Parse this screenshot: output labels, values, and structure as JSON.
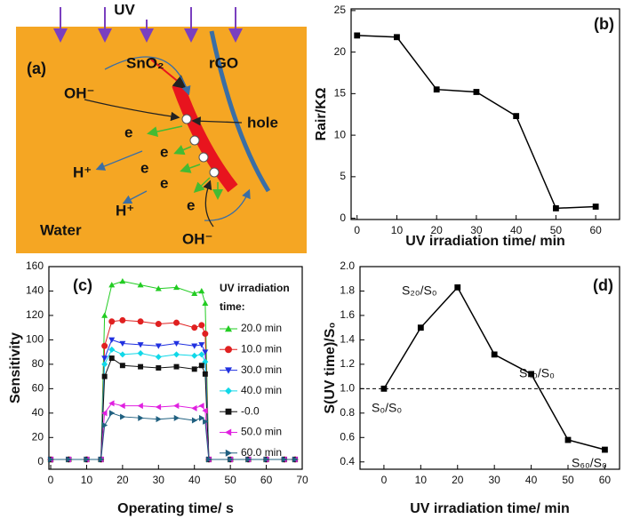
{
  "diagram": {
    "panel_label": "(a)",
    "source": "UV",
    "labels": {
      "sno2": "SnO₂",
      "rgo": "rGO",
      "oh_top": "OH⁻",
      "hole": "hole",
      "electron": "e",
      "h_plus": "H⁺",
      "water": "Water",
      "oh_bottom": "OH⁻"
    }
  },
  "chart_data": [
    {
      "type": "line",
      "panel_label": "(b)",
      "x_label": "UV irradiation time/ min",
      "y_label": "Rair/KΩ",
      "x": [
        0,
        10,
        20,
        30,
        40,
        50,
        60
      ],
      "series": [
        {
          "name": "Rair",
          "color": "#000000",
          "marker": "square",
          "values": [
            22,
            21.8,
            15.5,
            15.2,
            12.3,
            1.2,
            1.4
          ]
        }
      ],
      "xlim": [
        -1.5,
        66
      ],
      "ylim": [
        -0.15,
        25.2
      ],
      "xticks": [
        0,
        10,
        20,
        30,
        40,
        50,
        60
      ],
      "yticks": [
        0,
        5,
        10,
        15,
        20,
        25
      ]
    },
    {
      "type": "line",
      "panel_label": "(c)",
      "x_label": "Operating time/ s",
      "y_label": "Sensitivity",
      "legend_title": [
        "UV irradiation",
        "time:"
      ],
      "x": [
        0,
        5,
        10,
        14,
        15,
        17,
        20,
        25,
        30,
        35,
        40,
        42,
        43,
        44,
        50,
        55,
        60,
        65,
        68
      ],
      "series": [
        {
          "name": "20.0 min",
          "color": "#22cc22",
          "marker": "triangle-up",
          "values": [
            2,
            2,
            2,
            2,
            120,
            145,
            148,
            145,
            142,
            143,
            138,
            140,
            130,
            2,
            2,
            2,
            2,
            2,
            2
          ]
        },
        {
          "name": "10.0 min",
          "color": "#e02020",
          "marker": "circle",
          "values": [
            2,
            2,
            2,
            2,
            95,
            115,
            116,
            115,
            113,
            114,
            110,
            112,
            105,
            2,
            2,
            2,
            2,
            2,
            2
          ]
        },
        {
          "name": "30.0 min",
          "color": "#2030e0",
          "marker": "triangle-down",
          "values": [
            2,
            2,
            2,
            2,
            85,
            100,
            97,
            96,
            95,
            97,
            95,
            96,
            90,
            2,
            2,
            2,
            2,
            2,
            2
          ]
        },
        {
          "name": "40.0 min",
          "color": "#10d8e8",
          "marker": "diamond",
          "values": [
            2,
            2,
            2,
            2,
            80,
            92,
            88,
            89,
            86,
            88,
            87,
            88,
            82,
            2,
            2,
            2,
            2,
            2,
            2
          ]
        },
        {
          "name": "-0.0",
          "color": "#111111",
          "marker": "square",
          "values": [
            2,
            2,
            2,
            2,
            70,
            85,
            79,
            78,
            77,
            78,
            76,
            79,
            72,
            2,
            2,
            2,
            2,
            2,
            2
          ]
        },
        {
          "name": "50.0 min",
          "color": "#e020e0",
          "marker": "triangle-left",
          "values": [
            2,
            2,
            2,
            2,
            40,
            48,
            46,
            46,
            45,
            46,
            44,
            46,
            42,
            2,
            2,
            2,
            2,
            2,
            2
          ]
        },
        {
          "name": "60.0 min",
          "color": "#206080",
          "marker": "triangle-right",
          "values": [
            2,
            2,
            2,
            2,
            30,
            40,
            37,
            36,
            35,
            36,
            34,
            36,
            33,
            2,
            2,
            2,
            2,
            2,
            2
          ]
        }
      ],
      "xlim": [
        -0.5,
        70
      ],
      "ylim": [
        -6,
        160
      ],
      "xticks": [
        0,
        10,
        20,
        30,
        40,
        50,
        60,
        70
      ],
      "yticks": [
        0,
        20,
        40,
        60,
        80,
        100,
        120,
        140,
        160
      ]
    },
    {
      "type": "line",
      "panel_label": "(d)",
      "x_label": "UV irradiation time/ min",
      "y_label": "S(UV time)/S₀",
      "x": [
        0,
        10,
        20,
        30,
        40,
        50,
        60
      ],
      "series": [
        {
          "name": "S/S0",
          "color": "#000000",
          "marker": "square",
          "values": [
            1.0,
            1.5,
            1.83,
            1.28,
            1.12,
            0.58,
            0.5
          ]
        }
      ],
      "reference_line": 1.0,
      "annotations": [
        "S₀/S₀",
        "S₂₀/S₀",
        "S₄₀/S₀",
        "S₆₀/S₀"
      ],
      "xlim": [
        -6.5,
        64
      ],
      "ylim": [
        0.34,
        2.0
      ],
      "xticks": [
        0,
        10,
        20,
        30,
        40,
        50,
        60
      ],
      "yticks": [
        0.4,
        0.6,
        0.8,
        {
          "value": 1.0,
          "label": "1.0"
        },
        1.2,
        1.4,
        1.6,
        1.8,
        {
          "value": 2.0,
          "label": "2.0"
        }
      ]
    }
  ]
}
